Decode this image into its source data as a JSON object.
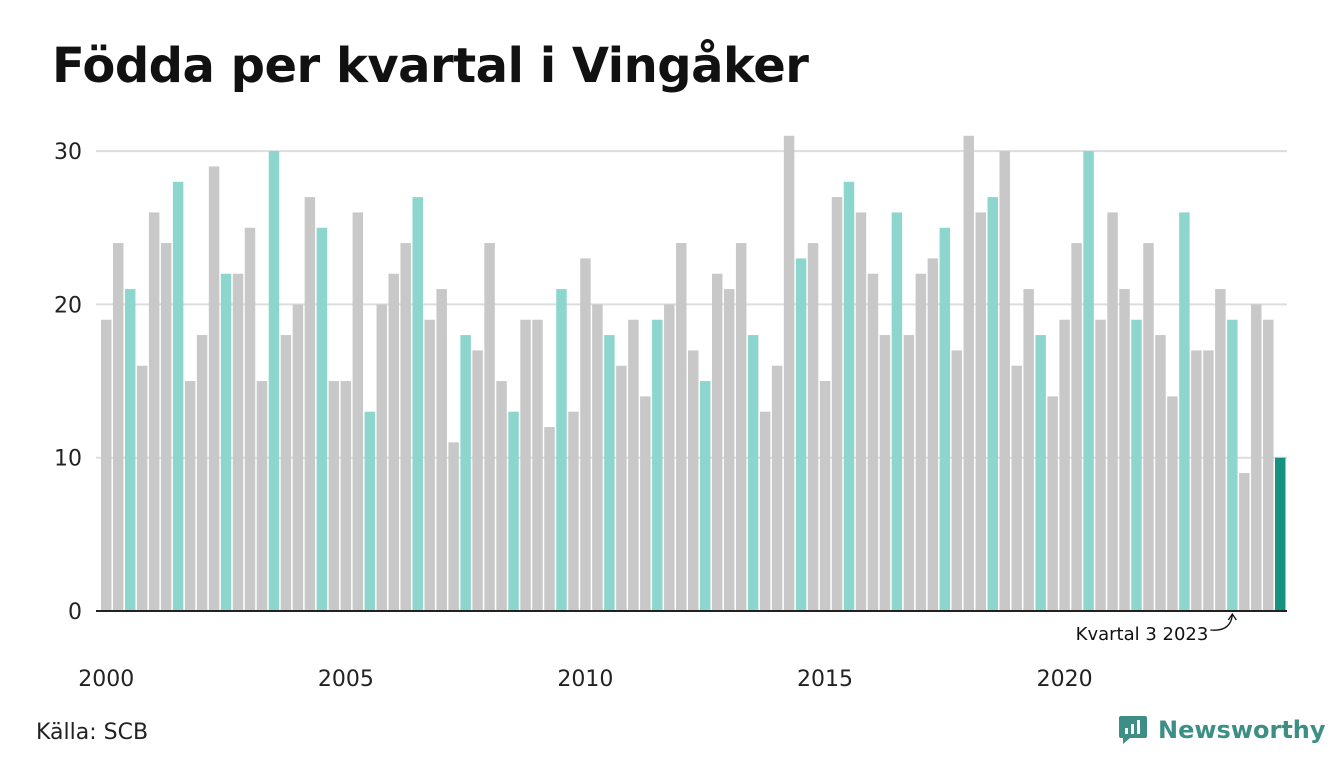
{
  "title": "Födda per kvartal i Vingåker",
  "source": "Källa: SCB",
  "brand": "Newsworthy",
  "colors": {
    "bar": "#c8c8c8",
    "bar_highlight": "#8dd6cd",
    "bar_latest": "#17917f",
    "grid": "#dddddd",
    "axis": "#222222",
    "brand": "#3d8f86"
  },
  "chart_data": {
    "type": "bar",
    "title": "Födda per kvartal i Vingåker",
    "xlabel": "",
    "ylabel": "",
    "ylim": [
      0,
      31
    ],
    "yticks": [
      0,
      10,
      20,
      30
    ],
    "x_tick_labels": [
      "2000",
      "2005",
      "2010",
      "2015",
      "2020"
    ],
    "start_year": 2000,
    "quarters_per_year": 4,
    "highlight_quarter": 3,
    "grid": true,
    "annotation": "Kvartal 3 2023",
    "values": [
      19,
      24,
      21,
      16,
      26,
      24,
      28,
      15,
      18,
      29,
      22,
      22,
      25,
      15,
      30,
      18,
      20,
      27,
      25,
      15,
      15,
      26,
      13,
      20,
      22,
      24,
      27,
      19,
      21,
      11,
      18,
      17,
      24,
      15,
      13,
      19,
      19,
      12,
      21,
      13,
      23,
      20,
      18,
      16,
      19,
      14,
      19,
      20,
      24,
      17,
      15,
      22,
      21,
      24,
      18,
      13,
      16,
      31,
      23,
      24,
      15,
      27,
      28,
      26,
      22,
      18,
      26,
      18,
      22,
      23,
      25,
      17,
      31,
      26,
      27,
      30,
      16,
      21,
      18,
      14,
      19,
      24,
      30,
      19,
      26,
      21,
      19,
      24,
      18,
      14,
      26,
      17,
      17,
      21,
      19,
      9,
      20,
      19,
      10
    ]
  }
}
